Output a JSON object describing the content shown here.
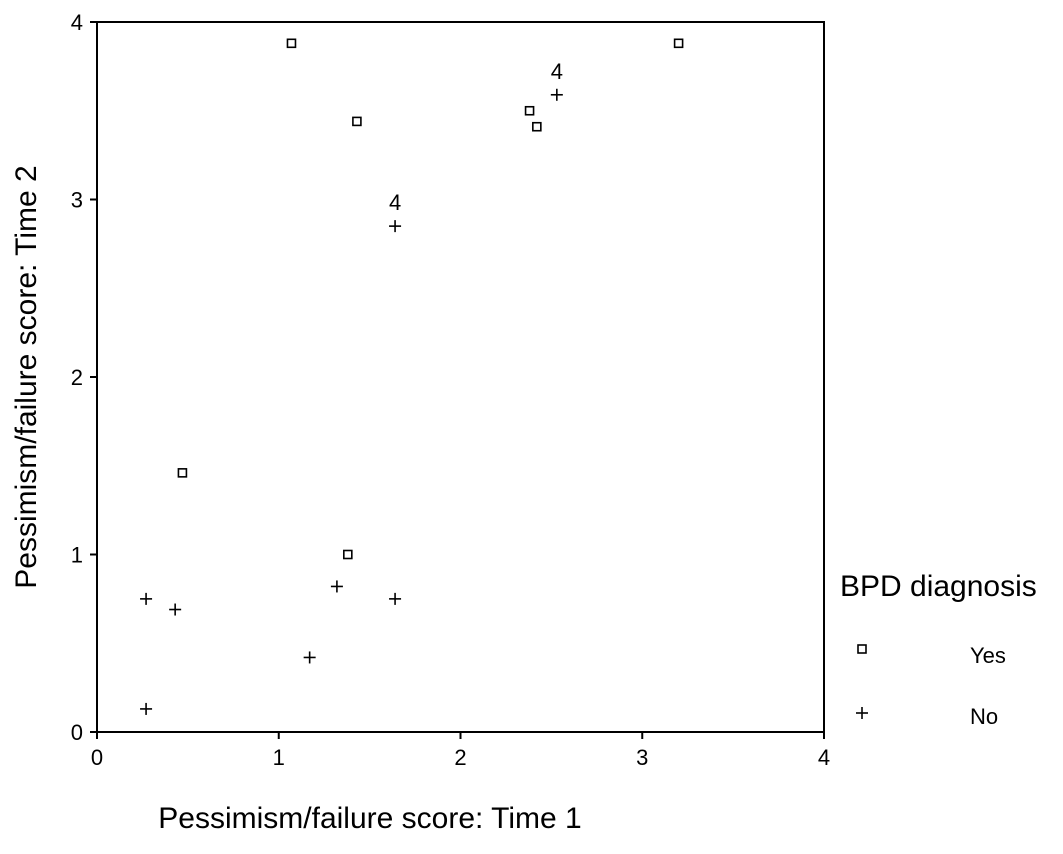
{
  "chart_data": {
    "type": "scatter",
    "title": "",
    "xlabel": "Pessimism/failure score: Time 1",
    "ylabel": "Pessimism/failure score: Time 2",
    "xlim": [
      0,
      4
    ],
    "ylim": [
      0,
      4
    ],
    "xticks": [
      "0",
      "1",
      "2",
      "3",
      "4"
    ],
    "yticks": [
      "0",
      "1",
      "2",
      "3",
      "4"
    ],
    "grid": false,
    "legend": {
      "title": "BPD diagnosis",
      "placement": "right",
      "entries": [
        {
          "label": "Yes",
          "marker": "square"
        },
        {
          "label": "No",
          "marker": "plus"
        }
      ]
    },
    "series": [
      {
        "name": "Yes",
        "marker": "square",
        "points": [
          {
            "x": 1.07,
            "y": 3.88
          },
          {
            "x": 3.2,
            "y": 3.88
          },
          {
            "x": 1.43,
            "y": 3.44
          },
          {
            "x": 2.38,
            "y": 3.5
          },
          {
            "x": 2.42,
            "y": 3.41
          },
          {
            "x": 0.47,
            "y": 1.46
          },
          {
            "x": 1.38,
            "y": 1.0
          }
        ]
      },
      {
        "name": "No",
        "marker": "plus",
        "points": [
          {
            "x": 2.53,
            "y": 3.59
          },
          {
            "x": 1.64,
            "y": 2.85
          },
          {
            "x": 0.27,
            "y": 0.75
          },
          {
            "x": 0.43,
            "y": 0.69
          },
          {
            "x": 1.32,
            "y": 0.82
          },
          {
            "x": 1.64,
            "y": 0.75
          },
          {
            "x": 1.17,
            "y": 0.42
          },
          {
            "x": 0.27,
            "y": 0.13
          }
        ]
      }
    ],
    "annotations": [
      {
        "text": "4",
        "x": 2.53,
        "y": 3.59
      },
      {
        "text": "4",
        "x": 1.64,
        "y": 2.85
      }
    ]
  }
}
